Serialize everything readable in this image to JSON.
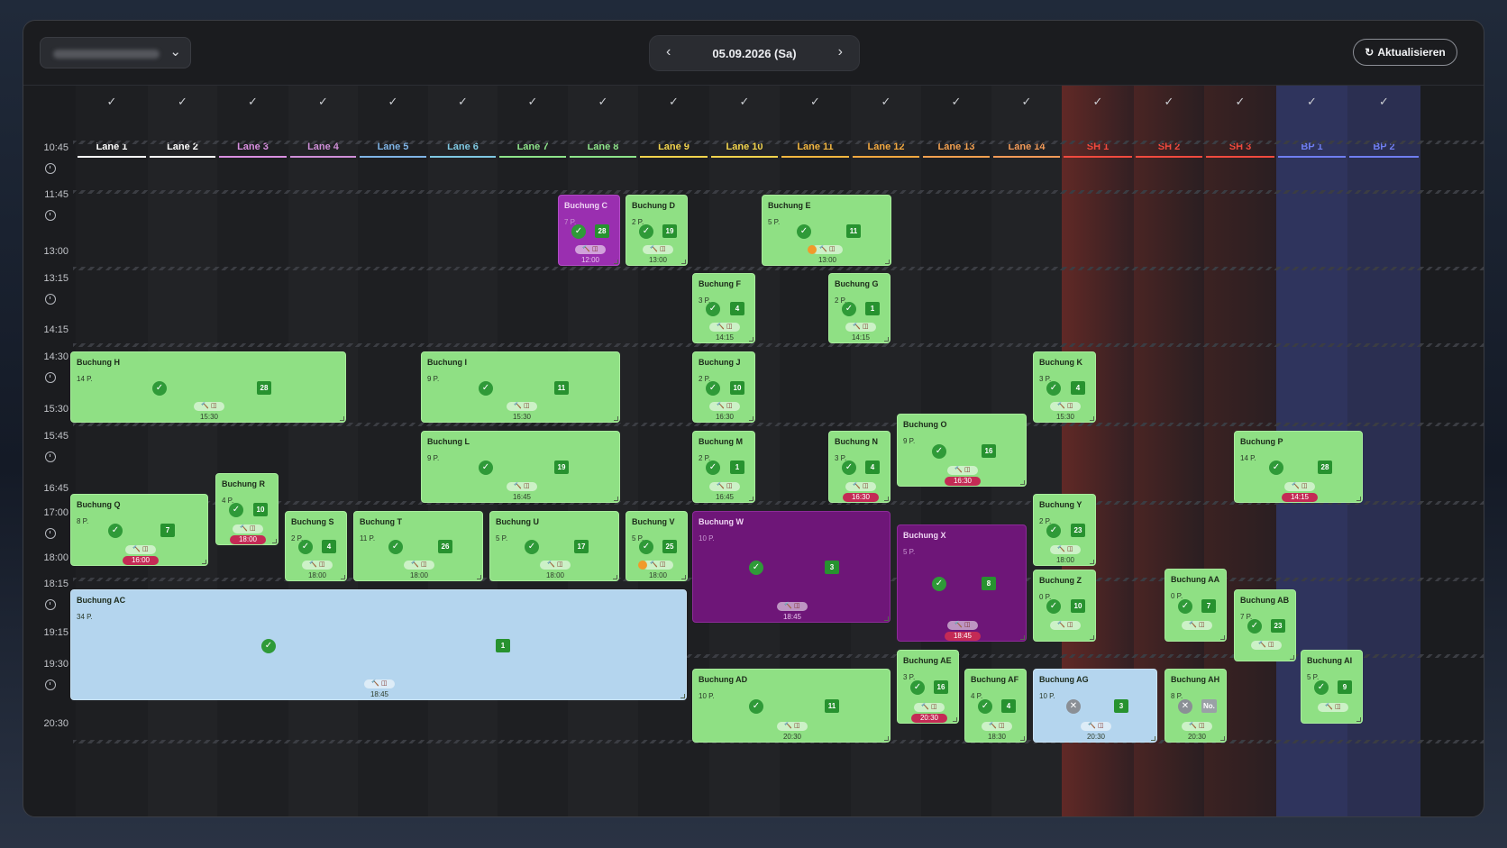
{
  "venue": {
    "placeholder": "",
    "chevron": "⌄"
  },
  "date_nav": {
    "date": "05.09.2026 (Sa)",
    "prev": "‹",
    "next": "›"
  },
  "refresh": {
    "icon": "↻",
    "label": "Aktualisieren"
  },
  "lanes": [
    {
      "name": "Lane 1",
      "color": "#ffffff"
    },
    {
      "name": "Lane 2",
      "color": "#ffffff"
    },
    {
      "name": "Lane 3",
      "color": "#d98fe0"
    },
    {
      "name": "Lane 4",
      "color": "#cf8fd8"
    },
    {
      "name": "Lane 5",
      "color": "#7fb4e6"
    },
    {
      "name": "Lane 6",
      "color": "#7fc8e2"
    },
    {
      "name": "Lane 7",
      "color": "#8ee48a"
    },
    {
      "name": "Lane 8",
      "color": "#8ee48a"
    },
    {
      "name": "Lane 9",
      "color": "#f2d34d"
    },
    {
      "name": "Lane 10",
      "color": "#f2d34d"
    },
    {
      "name": "Lane 11",
      "color": "#f2b640"
    },
    {
      "name": "Lane 12",
      "color": "#f2a840"
    },
    {
      "name": "Lane 13",
      "color": "#f2a050"
    },
    {
      "name": "Lane 14",
      "color": "#f29a58"
    },
    {
      "name": "SH 1",
      "color": "#f04a3e"
    },
    {
      "name": "SH 2",
      "color": "#f04a3e"
    },
    {
      "name": "SH 3",
      "color": "#f04a3e"
    },
    {
      "name": "BP 1",
      "color": "#6f7ef0"
    },
    {
      "name": "BP 2",
      "color": "#6f7ef0"
    }
  ],
  "header_check": "✓",
  "times": [
    {
      "label": "10:45",
      "clock": true
    },
    {
      "label": "11:45",
      "clock": true
    },
    {
      "label": "13:00",
      "clock": false
    },
    {
      "label": "13:15",
      "clock": true
    },
    {
      "label": "14:15",
      "clock": false
    },
    {
      "label": "14:30",
      "clock": true
    },
    {
      "label": "15:30",
      "clock": false
    },
    {
      "label": "15:45",
      "clock": true
    },
    {
      "label": "16:45",
      "clock": false
    },
    {
      "label": "17:00",
      "clock": true
    },
    {
      "label": "18:00",
      "clock": false
    },
    {
      "label": "18:15",
      "clock": true
    },
    {
      "label": "19:15",
      "clock": false
    },
    {
      "label": "19:30",
      "clock": true
    },
    {
      "label": "20:30",
      "clock": false
    }
  ],
  "bookings": [
    {
      "title": "Buchung C",
      "people": "7 P.",
      "num": "28",
      "end": "12:00",
      "style": "pb",
      "warn": false
    },
    {
      "title": "Buchung D",
      "people": "2 P.",
      "num": "19",
      "end": "13:00",
      "style": "g"
    },
    {
      "title": "Buchung E",
      "people": "5 P.",
      "num": "11",
      "end": "13:00",
      "style": "g",
      "warn": true
    },
    {
      "title": "Buchung F",
      "people": "3 P.",
      "num": "4",
      "end": "14:15",
      "style": "g"
    },
    {
      "title": "Buchung G",
      "people": "2 P.",
      "num": "1",
      "end": "14:15",
      "style": "g"
    },
    {
      "title": "Buchung H",
      "people": "14 P.",
      "num": "28",
      "end": "15:30",
      "style": "g"
    },
    {
      "title": "Buchung I",
      "people": "9 P.",
      "num": "11",
      "end": "15:30",
      "style": "g"
    },
    {
      "title": "Buchung J",
      "people": "2 P.",
      "num": "10",
      "end": "16:30",
      "style": "g"
    },
    {
      "title": "Buchung K",
      "people": "3 P.",
      "num": "4",
      "end": "15:30",
      "style": "g"
    },
    {
      "title": "Buchung O",
      "people": "9 P.",
      "num": "16",
      "end": "16:30",
      "style": "g",
      "red": true
    },
    {
      "title": "Buchung L",
      "people": "9 P.",
      "num": "19",
      "end": "16:45",
      "style": "g"
    },
    {
      "title": "Buchung M",
      "people": "2 P.",
      "num": "1",
      "end": "16:45",
      "style": "g"
    },
    {
      "title": "Buchung N",
      "people": "3 P.",
      "num": "4",
      "end": "16:30",
      "style": "g",
      "red": true
    },
    {
      "title": "Buchung P",
      "people": "14 P.",
      "num": "28",
      "end": "14:15",
      "style": "g",
      "red": true
    },
    {
      "title": "Buchung R",
      "people": "4 P.",
      "num": "10",
      "end": "18:00",
      "style": "g",
      "red": true
    },
    {
      "title": "Buchung Q",
      "people": "8 P.",
      "num": "7",
      "end": "16:00",
      "style": "g",
      "red": true
    },
    {
      "title": "Buchung Y",
      "people": "2 P.",
      "num": "23",
      "end": "18:00",
      "style": "g"
    },
    {
      "title": "Buchung S",
      "people": "2 P.",
      "num": "4",
      "end": "18:00",
      "style": "g"
    },
    {
      "title": "Buchung T",
      "people": "11 P.",
      "num": "26",
      "end": "18:00",
      "style": "g"
    },
    {
      "title": "Buchung U",
      "people": "5 P.",
      "num": "17",
      "end": "18:00",
      "style": "g"
    },
    {
      "title": "Buchung V",
      "people": "5 P.",
      "num": "25",
      "end": "18:00",
      "style": "g",
      "warn": true
    },
    {
      "title": "Buchung W",
      "people": "10 P.",
      "num": "3",
      "end": "18:45",
      "style": "p"
    },
    {
      "title": "Buchung X",
      "people": "5 P.",
      "num": "8",
      "end": "18:45",
      "style": "p",
      "red": true
    },
    {
      "title": "Buchung Z",
      "people": "0 P.",
      "num": "10",
      "end": "",
      "style": "g"
    },
    {
      "title": "Buchung AA",
      "people": "0 P.",
      "num": "7",
      "end": "",
      "style": "g"
    },
    {
      "title": "Buchung AB",
      "people": "7 P.",
      "num": "23",
      "end": "",
      "style": "g"
    },
    {
      "title": "Buchung AC",
      "people": "34 P.",
      "num": "1",
      "end": "18:45",
      "style": "b"
    },
    {
      "title": "Buchung AE",
      "people": "3 P.",
      "num": "16",
      "end": "20:30",
      "style": "g",
      "red": true
    },
    {
      "title": "Buchung AI",
      "people": "5 P.",
      "num": "9",
      "end": "",
      "style": "g"
    },
    {
      "title": "Buchung AD",
      "people": "10 P.",
      "num": "11",
      "end": "20:30",
      "style": "g"
    },
    {
      "title": "Buchung AF",
      "people": "4 P.",
      "num": "4",
      "end": "18:30",
      "style": "g"
    },
    {
      "title": "Buchung AG",
      "people": "10 P.",
      "num": "3",
      "end": "20:30",
      "style": "b",
      "cancel": true
    },
    {
      "title": "Buchung AH",
      "people": "8 P.",
      "num": "No.",
      "end": "20:30",
      "style": "g",
      "cancel": true,
      "grey": true
    }
  ],
  "booking_icons": {
    "check": "✓",
    "cancel": "✕",
    "pill": "🔨 ◫"
  }
}
